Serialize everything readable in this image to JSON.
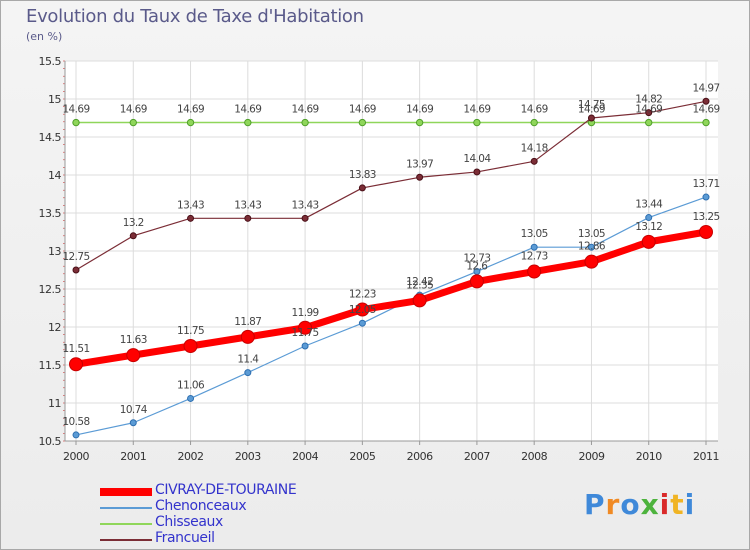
{
  "header": {
    "title": "Evolution du Taux de Taxe d'Habitation",
    "subtitle": "(en %)"
  },
  "brand": {
    "text": "Proxiti",
    "letter_colors": [
      "#3f89d9",
      "#f08a24",
      "#3f89d9",
      "#4db33d",
      "#d92a2a",
      "#f0b424",
      "#3f89d9"
    ]
  },
  "chart_data": {
    "type": "line",
    "title": "Evolution du Taux de Taxe d'Habitation",
    "subtitle": "(en %)",
    "xlabel": "",
    "ylabel": "",
    "x": [
      "2000",
      "2001",
      "2002",
      "2003",
      "2004",
      "2005",
      "2006",
      "2007",
      "2008",
      "2009",
      "2010",
      "2011"
    ],
    "ylim": [
      10.5,
      15.5
    ],
    "yticks": [
      "10.5",
      "11",
      "11.5",
      "12",
      "12.5",
      "13",
      "13.5",
      "14",
      "14.5",
      "15",
      "15.5"
    ],
    "grid": true,
    "legend_position": "bottom-left",
    "series": [
      {
        "name": "CIVRAY-DE-TOURAINE",
        "color": "#ff0000",
        "values": [
          11.51,
          11.63,
          11.75,
          11.87,
          11.99,
          12.23,
          12.35,
          12.6,
          12.73,
          12.86,
          13.12,
          13.25
        ],
        "labels": [
          "11.51",
          "11.63",
          "11.75",
          "11.87",
          "11.99",
          "12.23",
          "12.35",
          "12.6",
          "12.73",
          "12.86",
          "13.12",
          "13.25"
        ]
      },
      {
        "name": "Chenonceaux",
        "color": "#5b9bd5",
        "values": [
          10.58,
          10.74,
          11.06,
          11.4,
          11.75,
          12.05,
          12.42,
          12.73,
          13.05,
          13.05,
          13.44,
          13.71
        ],
        "labels": [
          "10.58",
          "10.74",
          "11.06",
          "11.4",
          "11.75",
          "12.05",
          "12.42",
          "12.73",
          "13.05",
          "13.05",
          "13.44",
          "13.71"
        ]
      },
      {
        "name": "Chisseaux",
        "color": "#8fd65a",
        "values": [
          14.69,
          14.69,
          14.69,
          14.69,
          14.69,
          14.69,
          14.69,
          14.69,
          14.69,
          14.69,
          14.69,
          14.69
        ],
        "labels": [
          "14.69",
          "14.69",
          "14.69",
          "14.69",
          "14.69",
          "14.69",
          "14.69",
          "14.69",
          "14.69",
          "14.69",
          "14.69",
          "14.69"
        ]
      },
      {
        "name": "Francueil",
        "color": "#7b2d36",
        "values": [
          12.75,
          13.2,
          13.43,
          13.43,
          13.43,
          13.83,
          13.97,
          14.04,
          14.18,
          14.75,
          14.82,
          14.97
        ],
        "labels": [
          "12.75",
          "13.2",
          "13.43",
          "13.43",
          "13.43",
          "13.83",
          "13.97",
          "14.04",
          "14.18",
          "14.75",
          "14.82",
          "14.97"
        ]
      }
    ]
  }
}
